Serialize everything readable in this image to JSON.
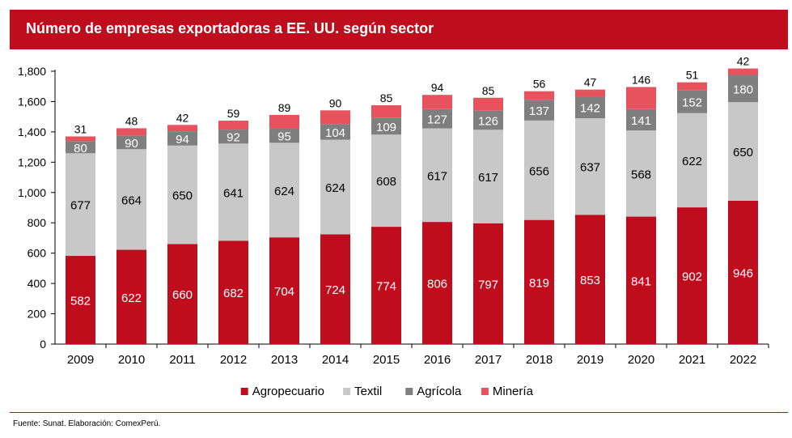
{
  "chart_data": {
    "type": "bar",
    "stacked": true,
    "title": "Número de empresas exportadoras a EE. UU. según sector",
    "categories": [
      "2009",
      "2010",
      "2011",
      "2012",
      "2013",
      "2014",
      "2015",
      "2016",
      "2017",
      "2018",
      "2019",
      "2020",
      "2021",
      "2022"
    ],
    "series": [
      {
        "name": "Agropecuario",
        "color": "#c00d1e",
        "label_color": "#ffffff",
        "values": [
          582,
          622,
          660,
          682,
          704,
          724,
          774,
          806,
          797,
          819,
          853,
          841,
          902,
          946
        ]
      },
      {
        "name": "Textil",
        "color": "#c8c8c8",
        "label_color": "#000000",
        "values": [
          677,
          664,
          650,
          641,
          624,
          624,
          608,
          617,
          617,
          656,
          637,
          568,
          622,
          650
        ]
      },
      {
        "name": "Agrícola",
        "color": "#7f7f7f",
        "label_color": "#ffffff",
        "values": [
          80,
          90,
          94,
          92,
          95,
          104,
          109,
          127,
          126,
          137,
          142,
          141,
          152,
          180
        ]
      },
      {
        "name": "Minería",
        "color": "#e8525c",
        "label_color": "#000000",
        "values": [
          31,
          48,
          42,
          59,
          89,
          90,
          85,
          94,
          85,
          56,
          47,
          146,
          51,
          42
        ]
      }
    ],
    "ylim": [
      0,
      1800
    ],
    "yticks": [
      "0",
      "200",
      "400",
      "600",
      "800",
      "1,000",
      "1,200",
      "1,400",
      "1,600",
      "1,800"
    ],
    "legend_position": "bottom",
    "grid": false
  },
  "footer": {
    "source": "Fuente: Sunat. Elaboración: ComexPerú."
  }
}
